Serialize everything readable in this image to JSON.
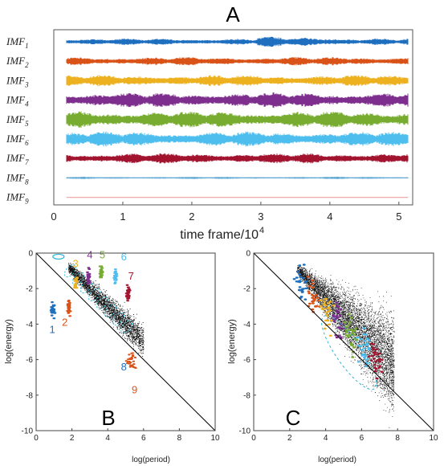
{
  "chart_data": [
    {
      "type": "line",
      "panel_label": "A",
      "xlabel": "time frame/10",
      "xlabel_exp": "4",
      "xlim": [
        0,
        5.2
      ],
      "xticks": [
        "0",
        "1",
        "2",
        "3",
        "4",
        "5"
      ],
      "series": [
        {
          "name": "IMF",
          "sub": "1",
          "color": "#1f6fbf",
          "amp": 0.35
        },
        {
          "name": "IMF",
          "sub": "2",
          "color": "#d95319",
          "amp": 0.45
        },
        {
          "name": "IMF",
          "sub": "3",
          "color": "#edb120",
          "amp": 0.6
        },
        {
          "name": "IMF",
          "sub": "4",
          "color": "#7e2f8e",
          "amp": 0.8
        },
        {
          "name": "IMF",
          "sub": "5",
          "color": "#77ac30",
          "amp": 0.9
        },
        {
          "name": "IMF",
          "sub": "6",
          "color": "#4dbeee",
          "amp": 0.8
        },
        {
          "name": "IMF",
          "sub": "7",
          "color": "#a2142f",
          "amp": 0.55
        },
        {
          "name": "IMF",
          "sub": "8",
          "color": "#5fa8d3",
          "amp": 0.12
        },
        {
          "name": "IMF",
          "sub": "9",
          "color": "#f0a8a8",
          "amp": 0.04
        }
      ]
    },
    {
      "type": "scatter",
      "panel_label": "B",
      "xlabel": "log(period)",
      "ylabel": "log(energy)",
      "xlim": [
        0,
        10
      ],
      "ylim": [
        -10,
        0
      ],
      "xticks": [
        "0",
        "2",
        "4",
        "6",
        "8",
        "10"
      ],
      "yticks": [
        "0",
        "-2",
        "-4",
        "-6",
        "-8",
        "-10"
      ],
      "reference_line": {
        "x": [
          0,
          10
        ],
        "y": [
          0,
          -10
        ]
      },
      "annotations": [
        {
          "text": "1",
          "x": 0.9,
          "y": -4.5,
          "color": "#1f6fbf"
        },
        {
          "text": "2",
          "x": 1.6,
          "y": -4.1,
          "color": "#d95319"
        },
        {
          "text": "3",
          "x": 2.2,
          "y": -0.8,
          "color": "#edb120"
        },
        {
          "text": "4",
          "x": 3.0,
          "y": -0.3,
          "color": "#7e2f8e"
        },
        {
          "text": "5",
          "x": 3.7,
          "y": -0.3,
          "color": "#77ac30"
        },
        {
          "text": "6",
          "x": 4.9,
          "y": -0.4,
          "color": "#4dbeee"
        },
        {
          "text": "7",
          "x": 5.3,
          "y": -1.5,
          "color": "#a2142f"
        },
        {
          "text": "8",
          "x": 4.9,
          "y": -6.6,
          "color": "#1f6fbf"
        },
        {
          "text": "9",
          "x": 5.5,
          "y": -7.9,
          "color": "#d95319"
        }
      ],
      "clusters": [
        {
          "color": "#1f6fbf",
          "x": 0.9,
          "y": -3.3
        },
        {
          "color": "#d95319",
          "x": 1.8,
          "y": -3.0
        },
        {
          "color": "#edb120",
          "x": 2.2,
          "y": -1.7
        },
        {
          "color": "#7e2f8e",
          "x": 2.9,
          "y": -1.3
        },
        {
          "color": "#77ac30",
          "x": 3.6,
          "y": -1.1
        },
        {
          "color": "#4dbeee",
          "x": 4.4,
          "y": -1.3
        },
        {
          "color": "#a2142f",
          "x": 5.1,
          "y": -2.3
        }
      ]
    },
    {
      "type": "scatter",
      "panel_label": "C",
      "xlabel": "log(period)",
      "ylabel": "log(energy)",
      "xlim": [
        0,
        10
      ],
      "ylim": [
        -10,
        0
      ],
      "xticks": [
        "0",
        "2",
        "4",
        "6",
        "8",
        "10"
      ],
      "yticks": [
        "0",
        "-2",
        "-4",
        "-6",
        "-8",
        "-10"
      ],
      "reference_line": {
        "x": [
          0,
          10
        ],
        "y": [
          0,
          -10
        ]
      }
    }
  ]
}
